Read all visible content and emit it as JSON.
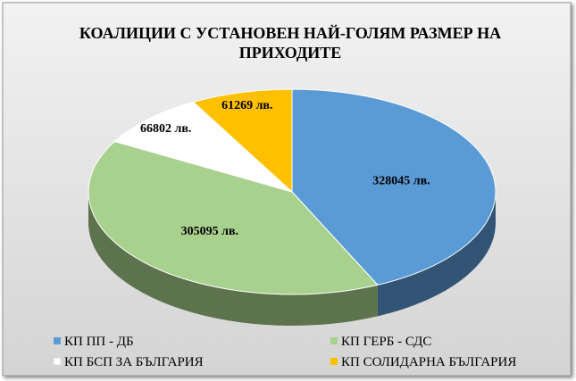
{
  "chart_data": {
    "type": "pie3d",
    "title": "КОАЛИЦИИ С УСТАНОВЕН НАЙ-ГОЛЯМ РАЗМЕР НА ПРИХОДИТЕ",
    "categories": [
      "КП ПП - ДБ",
      "КП ГЕРБ - СДС",
      "КП БСП ЗА БЪЛГАРИЯ",
      "КП СОЛИДАРНА БЪЛГАРИЯ"
    ],
    "values": [
      328045,
      305095,
      66802,
      61269
    ],
    "value_labels": [
      "328045 лв.",
      "305095 лв.",
      "66802 лв.",
      "61269 лв."
    ],
    "colors": [
      "#5b9bd5",
      "#a9d18e",
      "#ffffff",
      "#ffc000"
    ],
    "legend": "bottom"
  }
}
